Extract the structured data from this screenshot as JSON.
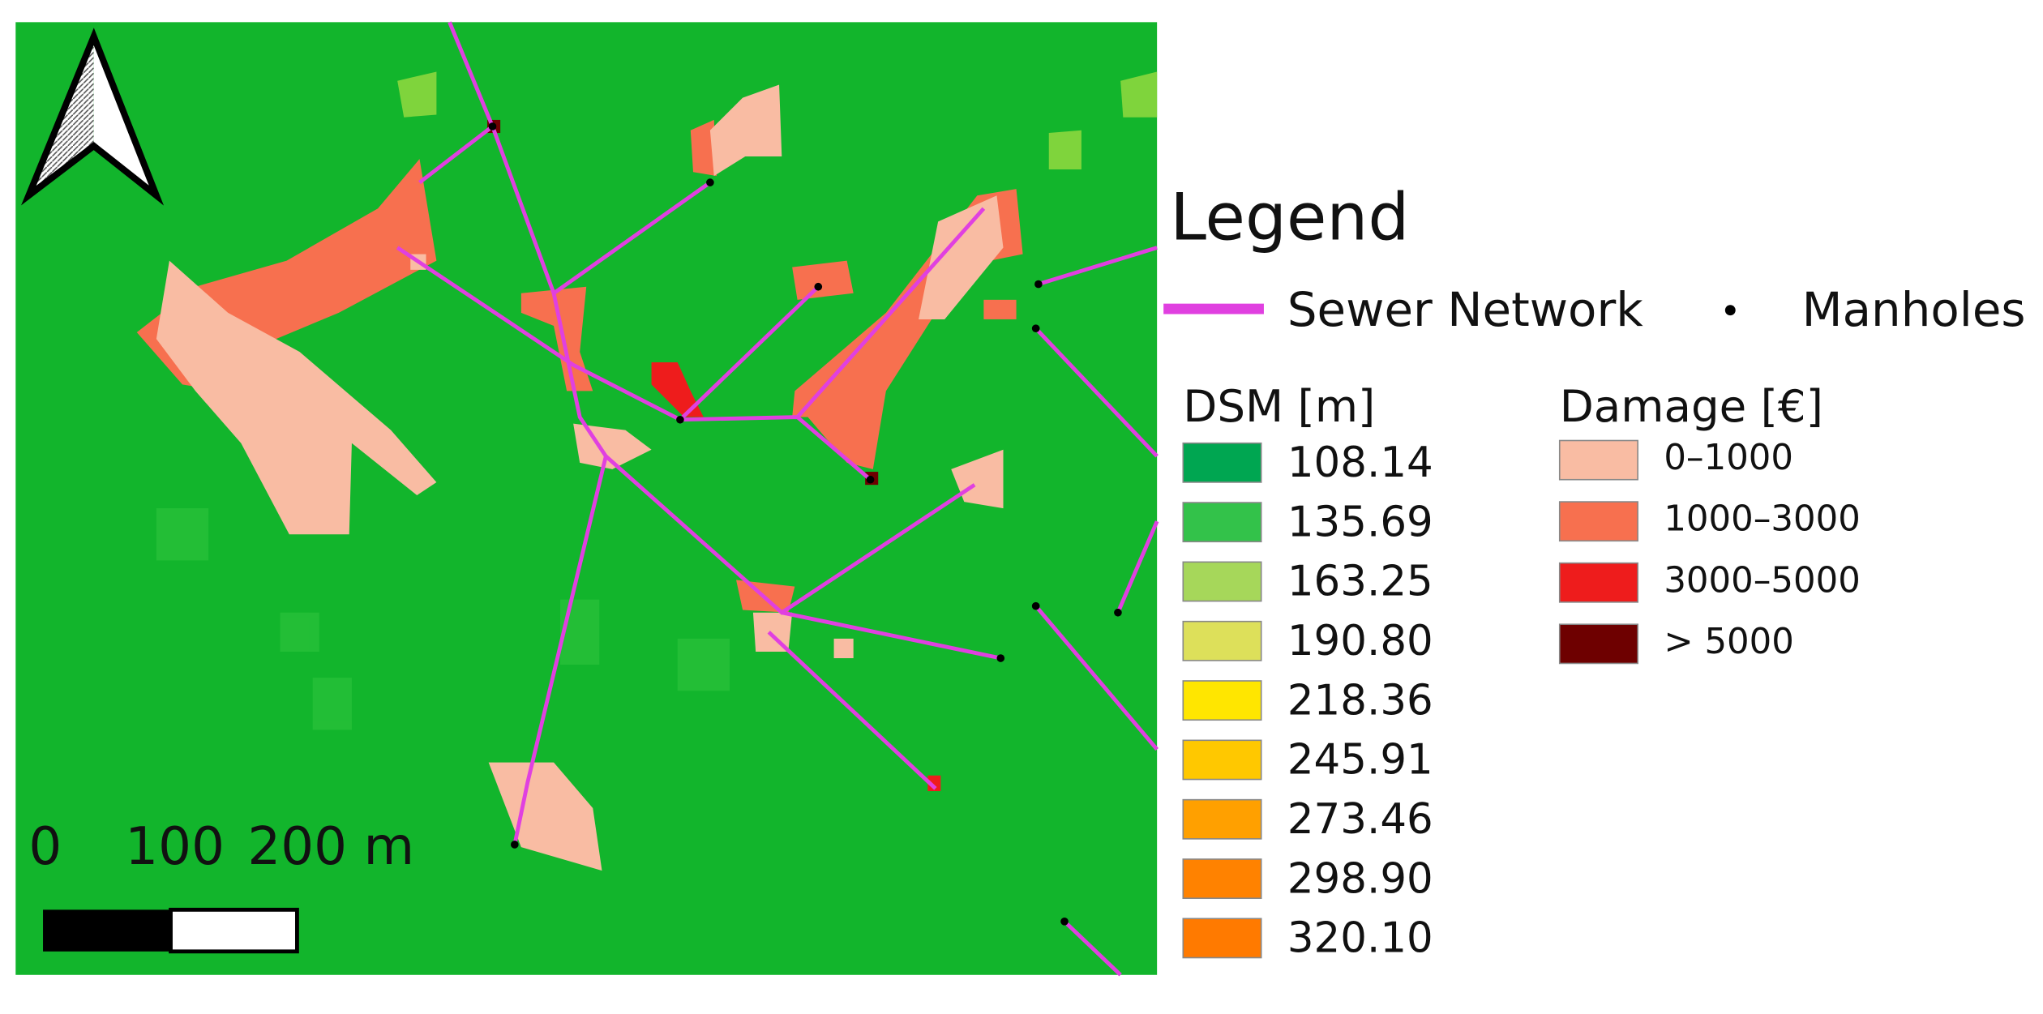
{
  "legend": {
    "title": "Legend",
    "sewer_network": "Sewer Network",
    "manholes": "Manholes",
    "dsm": {
      "title": "DSM [m]",
      "items": [
        {
          "label": "108.14",
          "color": "#00a651"
        },
        {
          "label": "135.69",
          "color": "#33c24a"
        },
        {
          "label": "163.25",
          "color": "#a6d75a"
        },
        {
          "label": "190.80",
          "color": "#dde05a"
        },
        {
          "label": "218.36",
          "color": "#ffe600"
        },
        {
          "label": "245.91",
          "color": "#ffc800"
        },
        {
          "label": "273.46",
          "color": "#ffa000"
        },
        {
          "label": "298.90",
          "color": "#ff8200"
        },
        {
          "label": "320.10",
          "color": "#ff7a00"
        }
      ]
    },
    "damage": {
      "title": "Damage [€]",
      "items": [
        {
          "label": "0–1000",
          "color": "#f9bca3"
        },
        {
          "label": "1000–3000",
          "color": "#f7704f"
        },
        {
          "label": "3000–5000",
          "color": "#ee1c1c"
        },
        {
          "label": "> 5000",
          "color": "#6e0000"
        }
      ]
    }
  },
  "scale_bar": {
    "labels": [
      "0",
      "100",
      "200 m"
    ]
  }
}
